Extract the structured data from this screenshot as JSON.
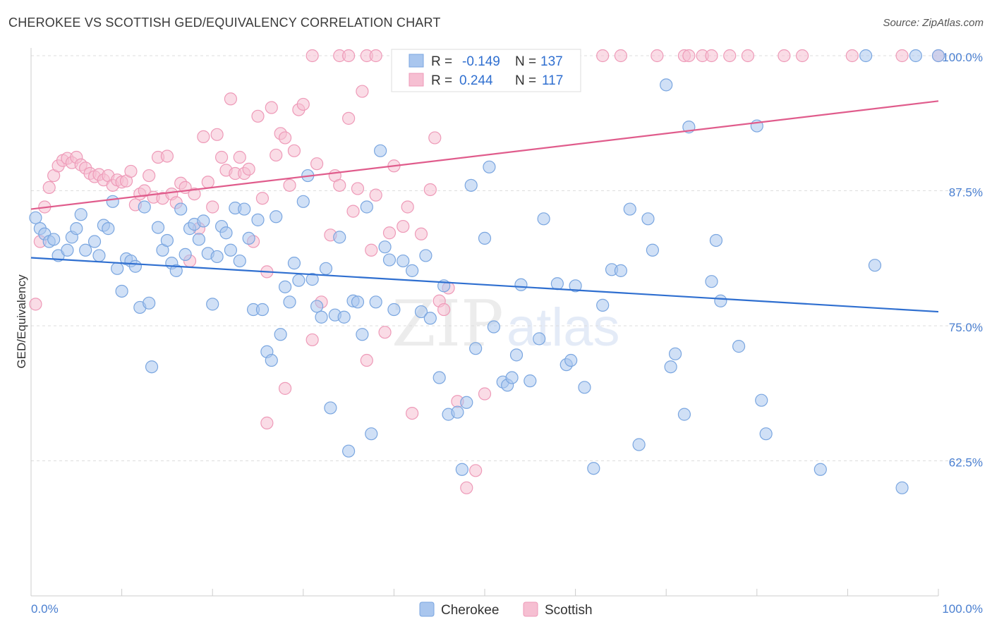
{
  "header": {
    "title": "CHEROKEE VS SCOTTISH GED/EQUIVALENCY CORRELATION CHART",
    "source": "Source: ZipAtlas.com"
  },
  "watermark": {
    "zip": "ZIP",
    "atlas": "atlas"
  },
  "chart_data": {
    "type": "scatter",
    "xlabel": "",
    "ylabel": "GED/Equivalency",
    "x_range": [
      0,
      100
    ],
    "y_range": [
      50,
      100
    ],
    "x_tick_labels": [
      "0.0%",
      "100.0%"
    ],
    "y_ticks": [
      100.0,
      87.5,
      75.0,
      62.5
    ],
    "y_tick_labels": [
      "100.0%",
      "87.5%",
      "75.0%",
      "62.5%"
    ],
    "grid": true,
    "legend_placement": "top-center",
    "legend": [
      {
        "r_label": "R =",
        "r_value": "-0.149",
        "n_label": "N =",
        "n_value": "137"
      },
      {
        "r_label": "R =",
        "r_value": "0.244",
        "n_label": "N =",
        "n_value": "117"
      }
    ],
    "series": [
      {
        "name": "Cherokee",
        "color": "#7aa6e0",
        "fill": "#a9c6ee",
        "line_color": "#2f6fd0",
        "trend": {
          "x": [
            0,
            100
          ],
          "y": [
            81.3,
            76.3
          ]
        },
        "points": [
          [
            0.5,
            85
          ],
          [
            1,
            84
          ],
          [
            1.5,
            83.5
          ],
          [
            2,
            82.8
          ],
          [
            2.5,
            83
          ],
          [
            3,
            81.5
          ],
          [
            4,
            82
          ],
          [
            4.5,
            83.2
          ],
          [
            5,
            84
          ],
          [
            5.5,
            85.3
          ],
          [
            6,
            82
          ],
          [
            7,
            82.8
          ],
          [
            7.5,
            81.5
          ],
          [
            8,
            84.3
          ],
          [
            8.5,
            84
          ],
          [
            9,
            86.5
          ],
          [
            9.5,
            80.3
          ],
          [
            10,
            78.2
          ],
          [
            10.5,
            81.2
          ],
          [
            11,
            81
          ],
          [
            11.5,
            80.5
          ],
          [
            12,
            76.7
          ],
          [
            12.5,
            86
          ],
          [
            13,
            77.1
          ],
          [
            13.3,
            71.2
          ],
          [
            14,
            84.1
          ],
          [
            14.5,
            82
          ],
          [
            15,
            82.9
          ],
          [
            15.5,
            80.8
          ],
          [
            16,
            80.1
          ],
          [
            16.5,
            85.8
          ],
          [
            17,
            81.6
          ],
          [
            17.5,
            84
          ],
          [
            18,
            84.4
          ],
          [
            18.5,
            83
          ],
          [
            19,
            84.7
          ],
          [
            19.5,
            81.7
          ],
          [
            20,
            77
          ],
          [
            20.5,
            81.4
          ],
          [
            21,
            84.2
          ],
          [
            21.5,
            83.6
          ],
          [
            22,
            82
          ],
          [
            23,
            81
          ],
          [
            22.5,
            85.9
          ],
          [
            23.5,
            85.8
          ],
          [
            24,
            83.1
          ],
          [
            24.5,
            76.5
          ],
          [
            25,
            84.8
          ],
          [
            25.5,
            76.5
          ],
          [
            26,
            72.6
          ],
          [
            26.5,
            71.8
          ],
          [
            27,
            85.1
          ],
          [
            27.5,
            74.2
          ],
          [
            28,
            78.6
          ],
          [
            28.5,
            77.2
          ],
          [
            29,
            80.8
          ],
          [
            29.5,
            79.2
          ],
          [
            30,
            86.5
          ],
          [
            30.5,
            88.9
          ],
          [
            31,
            79.3
          ],
          [
            31.5,
            76.8
          ],
          [
            32,
            75.8
          ],
          [
            32.5,
            80.3
          ],
          [
            33,
            67.4
          ],
          [
            33.5,
            76
          ],
          [
            34,
            83.2
          ],
          [
            34.5,
            75.8
          ],
          [
            35,
            63.4
          ],
          [
            35.5,
            77.3
          ],
          [
            36,
            77.2
          ],
          [
            36.5,
            74.2
          ],
          [
            37,
            86
          ],
          [
            37.5,
            65
          ],
          [
            38,
            77.2
          ],
          [
            38.5,
            91.2
          ],
          [
            39,
            82.3
          ],
          [
            39.5,
            81.1
          ],
          [
            40,
            76.5
          ],
          [
            41,
            81
          ],
          [
            42,
            80.1
          ],
          [
            43,
            76.3
          ],
          [
            43.5,
            81.5
          ],
          [
            44,
            75.7
          ],
          [
            45,
            70.2
          ],
          [
            45.5,
            78.7
          ],
          [
            46,
            66.8
          ],
          [
            47,
            67
          ],
          [
            47.5,
            61.7
          ],
          [
            48,
            67.9
          ],
          [
            48.5,
            88
          ],
          [
            49,
            72.9
          ],
          [
            50,
            83.1
          ],
          [
            50.5,
            89.7
          ],
          [
            51,
            74.9
          ],
          [
            52,
            69.8
          ],
          [
            52.5,
            69.5
          ],
          [
            53,
            70.2
          ],
          [
            53.5,
            72.3
          ],
          [
            54,
            78.8
          ],
          [
            55,
            69.9
          ],
          [
            56,
            73.8
          ],
          [
            56.5,
            84.9
          ],
          [
            58,
            78.9
          ],
          [
            59,
            71.4
          ],
          [
            59.5,
            71.8
          ],
          [
            60,
            78.7
          ],
          [
            61,
            69.3
          ],
          [
            62,
            61.8
          ],
          [
            63,
            76.9
          ],
          [
            64,
            80.2
          ],
          [
            65,
            80.1
          ],
          [
            66,
            85.8
          ],
          [
            67,
            64
          ],
          [
            68,
            84.9
          ],
          [
            68.5,
            82
          ],
          [
            70,
            97.3
          ],
          [
            70.5,
            71.2
          ],
          [
            71,
            72.4
          ],
          [
            72,
            66.8
          ],
          [
            72.5,
            93.4
          ],
          [
            75,
            79.1
          ],
          [
            75.5,
            82.9
          ],
          [
            76,
            77.3
          ],
          [
            78,
            73.1
          ],
          [
            80,
            93.5
          ],
          [
            80.5,
            68.1
          ],
          [
            81,
            65
          ],
          [
            87,
            61.7
          ],
          [
            93,
            80.6
          ],
          [
            96,
            60
          ],
          [
            92,
            100
          ],
          [
            97.5,
            100
          ],
          [
            100,
            100
          ]
        ]
      },
      {
        "name": "Scottish",
        "color": "#ee9ab8",
        "fill": "#f6bfd2",
        "line_color": "#e05c8c",
        "trend": {
          "x": [
            0,
            100
          ],
          "y": [
            85.8,
            95.8
          ]
        },
        "points": [
          [
            0.5,
            77
          ],
          [
            1,
            82.8
          ],
          [
            1.5,
            86
          ],
          [
            2,
            87.8
          ],
          [
            2.5,
            88.9
          ],
          [
            3,
            89.8
          ],
          [
            3.5,
            90.3
          ],
          [
            4,
            90.5
          ],
          [
            4.5,
            90.1
          ],
          [
            5,
            90.6
          ],
          [
            5.5,
            89.9
          ],
          [
            6,
            89.6
          ],
          [
            6.5,
            89.1
          ],
          [
            7,
            88.8
          ],
          [
            7.5,
            89
          ],
          [
            8,
            88.5
          ],
          [
            8.5,
            88.9
          ],
          [
            9,
            88
          ],
          [
            9.5,
            88.5
          ],
          [
            10,
            88.3
          ],
          [
            10.5,
            88.4
          ],
          [
            11,
            89.3
          ],
          [
            11.5,
            86.2
          ],
          [
            12,
            87.2
          ],
          [
            12.5,
            87.5
          ],
          [
            13,
            88.9
          ],
          [
            13.5,
            86.9
          ],
          [
            14,
            90.6
          ],
          [
            14.5,
            86.8
          ],
          [
            15,
            90.7
          ],
          [
            15.5,
            87.2
          ],
          [
            16,
            86.4
          ],
          [
            16.5,
            88.2
          ],
          [
            17,
            87.8
          ],
          [
            17.5,
            81
          ],
          [
            18,
            87.2
          ],
          [
            18.5,
            84
          ],
          [
            19,
            92.5
          ],
          [
            19.5,
            88.3
          ],
          [
            20,
            86
          ],
          [
            20.5,
            92.7
          ],
          [
            21,
            90.6
          ],
          [
            21.5,
            89.4
          ],
          [
            22,
            96
          ],
          [
            22.5,
            89.1
          ],
          [
            23,
            90.6
          ],
          [
            23.5,
            89.1
          ],
          [
            24,
            89.5
          ],
          [
            24.5,
            82.8
          ],
          [
            25,
            94.4
          ],
          [
            25.5,
            86.8
          ],
          [
            26,
            80
          ],
          [
            26.5,
            95.2
          ],
          [
            27,
            90.8
          ],
          [
            27.5,
            92.8
          ],
          [
            28,
            92.4
          ],
          [
            28.5,
            88
          ],
          [
            29,
            91.2
          ],
          [
            29.5,
            95
          ],
          [
            30,
            95.5
          ],
          [
            31,
            73.7
          ],
          [
            31.5,
            90
          ],
          [
            32,
            77.2
          ],
          [
            33,
            83.4
          ],
          [
            33.5,
            88.9
          ],
          [
            34,
            88
          ],
          [
            35,
            94.2
          ],
          [
            35.5,
            85.6
          ],
          [
            36,
            87.7
          ],
          [
            36.5,
            96.7
          ],
          [
            37,
            71.8
          ],
          [
            37.5,
            82
          ],
          [
            38,
            87.1
          ],
          [
            39,
            74.4
          ],
          [
            39.5,
            83.6
          ],
          [
            40,
            89.8
          ],
          [
            41,
            84.2
          ],
          [
            41.5,
            86
          ],
          [
            42,
            66.9
          ],
          [
            43,
            83.5
          ],
          [
            44,
            87.6
          ],
          [
            44.5,
            92.4
          ],
          [
            45,
            77.3
          ],
          [
            45.5,
            76.5
          ],
          [
            46,
            78.5
          ],
          [
            47,
            68
          ],
          [
            48,
            60
          ],
          [
            49,
            61.6
          ],
          [
            50,
            68.7
          ],
          [
            26,
            66
          ],
          [
            28,
            69.2
          ],
          [
            34,
            100
          ],
          [
            31,
            100
          ],
          [
            35,
            100
          ],
          [
            37,
            100
          ],
          [
            38,
            100
          ],
          [
            43,
            100
          ],
          [
            47,
            100
          ],
          [
            50,
            100
          ],
          [
            53,
            100
          ],
          [
            56,
            100
          ],
          [
            59,
            100
          ],
          [
            63,
            100
          ],
          [
            65,
            100
          ],
          [
            69,
            100
          ],
          [
            72,
            100
          ],
          [
            72.5,
            100
          ],
          [
            74,
            100
          ],
          [
            75,
            100
          ],
          [
            77,
            100
          ],
          [
            79,
            100
          ],
          [
            83,
            100
          ],
          [
            85,
            100
          ],
          [
            90.5,
            100
          ],
          [
            96,
            100
          ],
          [
            100,
            100
          ]
        ]
      }
    ]
  }
}
